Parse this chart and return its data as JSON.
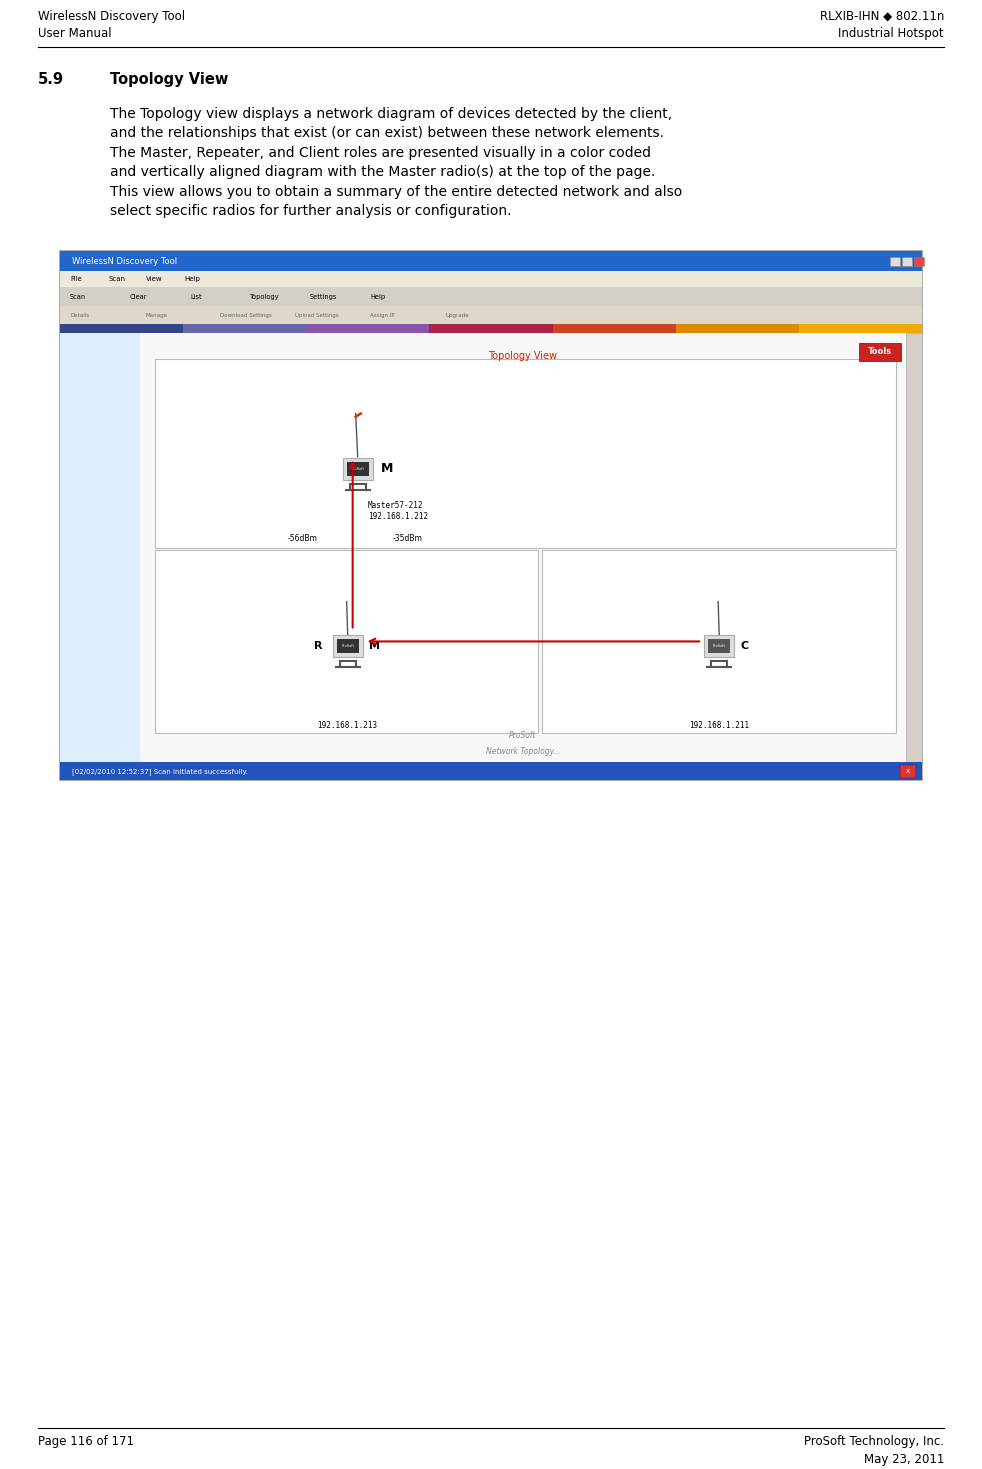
{
  "page_width": 9.82,
  "page_height": 14.69,
  "bg_color": "#ffffff",
  "header_left_line1": "WirelessN Discovery Tool",
  "header_left_line2": "User Manual",
  "header_right_line1": "RLXIB-IHN ◆ 802.11n",
  "header_right_line2": "Industrial Hotspot",
  "footer_left": "Page 116 of 171",
  "footer_right_line1": "ProSoft Technology, Inc.",
  "footer_right_line2": "May 23, 2011",
  "section_number": "5.9",
  "section_title": "Topology View",
  "body_text_lines": [
    "The Topology view displays a network diagram of devices detected by the client,",
    "and the relationships that exist (or can exist) between these network elements.",
    "The Master, Repeater, and Client roles are presented visually in a color coded",
    "and vertically aligned diagram with the Master radio(s) at the top of the page.",
    "This view allows you to obtain a summary of the entire detected network and also",
    "select specific radios for further analysis or configuration."
  ],
  "header_font_size": 8.5,
  "footer_font_size": 8.5,
  "section_num_font_size": 10.5,
  "section_title_font_size": 10.5,
  "body_font_size": 10,
  "line_color": "#000000",
  "text_color": "#000000",
  "screenshot_title_bar_color": "#2266cc",
  "screenshot_toolbar_color": "#d4d0c8",
  "screenshot_menu_color": "#ece9d8",
  "screenshot_toolbar2_color": "#ddd8c8",
  "topology_view_title": "Topology View",
  "tools_button_color": "#cc2222",
  "master_label": "M",
  "repeater_labels": "R    M",
  "client_label": "C",
  "master_name": "Master57-212",
  "master_ip": "192.168.1.212",
  "repeater_ip": "192.168.1.213",
  "client_ip": "192.168.1.211",
  "signal_left": "-56dBm",
  "signal_right": "-35dBm",
  "status_bar_text": "[02/02/2010 12:52:37] Scan initiated successfully.",
  "status_bar_color": "#2255bb",
  "prosoft_watermark": "ProSoft",
  "network_topology_label": "Network Topology...",
  "stripe_colors": [
    "#226699",
    "#4499bb",
    "#88aacc",
    "#cc4400",
    "#dd6600",
    "#eeaa00"
  ],
  "inner_left_panel_color": "#e8e8e8",
  "inner_right_panel_color": "#f5f5f5",
  "node_bg_color": "#333333",
  "antenna_color_master": "#cc3300",
  "antenna_color_other": "#555555",
  "arrow_color": "#cc0000",
  "node_box_bg": "#ffffff",
  "node_outer_color": "#cccccc"
}
